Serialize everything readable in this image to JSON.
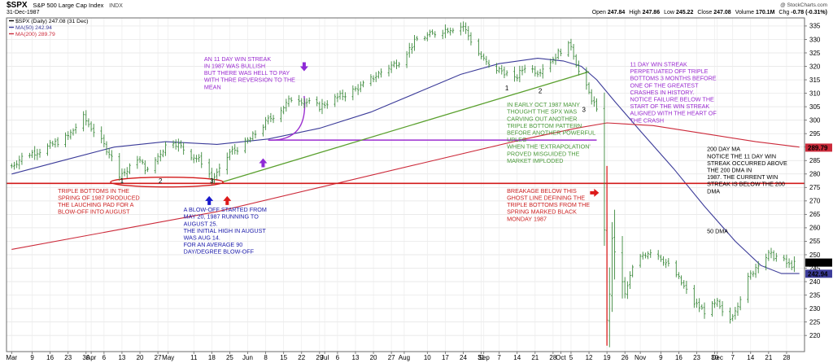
{
  "header": {
    "symbol": "$SPX",
    "title": "S&P 500 Large Cap Index",
    "exchange": "INDX",
    "date": "31-Dec-1987",
    "watermark": "@ StockCharts.com",
    "ohlc": [
      {
        "label": "Open",
        "value": "247.84"
      },
      {
        "label": "High",
        "value": "247.86"
      },
      {
        "label": "Low",
        "value": "245.22"
      },
      {
        "label": "Close",
        "value": "247.08"
      },
      {
        "label": "Volume",
        "value": "170.1M"
      },
      {
        "label": "Chg",
        "value": "-0.78 (-0.31%)"
      }
    ]
  },
  "legend": [
    {
      "text": "$SPX (Daily) 247.08 (31 Dec)",
      "color": "#000000"
    },
    {
      "text": "MA(50) 242.94",
      "color": "#3b3b99"
    },
    {
      "text": "MA(200) 289.79",
      "color": "#cc2a3a"
    }
  ],
  "chart_data": {
    "type": "bar",
    "title": "$SPX S&P 500 Large Cap Index",
    "ylim": [
      214,
      338
    ],
    "y_ticks": [
      220,
      225,
      230,
      235,
      240,
      245,
      250,
      255,
      260,
      265,
      270,
      275,
      280,
      285,
      290,
      295,
      300,
      305,
      310,
      315,
      320,
      325,
      330,
      335
    ],
    "x_ticks": [
      {
        "label": "Mar",
        "day": 0
      },
      {
        "label": "9",
        "day": 8
      },
      {
        "label": "16",
        "day": 15
      },
      {
        "label": "23",
        "day": 22
      },
      {
        "label": "30",
        "day": 29
      },
      {
        "label": "Apr",
        "day": 31
      },
      {
        "label": "6",
        "day": 36
      },
      {
        "label": "13",
        "day": 43
      },
      {
        "label": "20",
        "day": 50
      },
      {
        "label": "27",
        "day": 57
      },
      {
        "label": "May",
        "day": 61
      },
      {
        "label": "11",
        "day": 71
      },
      {
        "label": "18",
        "day": 78
      },
      {
        "label": "25",
        "day": 85
      },
      {
        "label": "Jun",
        "day": 92
      },
      {
        "label": "8",
        "day": 99
      },
      {
        "label": "15",
        "day": 106
      },
      {
        "label": "22",
        "day": 113
      },
      {
        "label": "29",
        "day": 120
      },
      {
        "label": "Jul",
        "day": 122
      },
      {
        "label": "6",
        "day": 127
      },
      {
        "label": "13",
        "day": 134
      },
      {
        "label": "20",
        "day": 141
      },
      {
        "label": "27",
        "day": 148
      },
      {
        "label": "Aug",
        "day": 153
      },
      {
        "label": "10",
        "day": 162
      },
      {
        "label": "17",
        "day": 169
      },
      {
        "label": "24",
        "day": 176
      },
      {
        "label": "31",
        "day": 183
      },
      {
        "label": "Sep",
        "day": 184
      },
      {
        "label": "7",
        "day": 190
      },
      {
        "label": "14",
        "day": 197
      },
      {
        "label": "21",
        "day": 204
      },
      {
        "label": "28",
        "day": 211
      },
      {
        "label": "Oct",
        "day": 214
      },
      {
        "label": "5",
        "day": 218
      },
      {
        "label": "12",
        "day": 225
      },
      {
        "label": "19",
        "day": 232
      },
      {
        "label": "26",
        "day": 239
      },
      {
        "label": "Nov",
        "day": 245
      },
      {
        "label": "9",
        "day": 253
      },
      {
        "label": "16",
        "day": 260
      },
      {
        "label": "23",
        "day": 267
      },
      {
        "label": "30",
        "day": 274
      },
      {
        "label": "Dec",
        "day": 275
      },
      {
        "label": "7",
        "day": 281
      },
      {
        "label": "14",
        "day": 288
      },
      {
        "label": "21",
        "day": 295
      },
      {
        "label": "28",
        "day": 302
      }
    ],
    "x_range_days": [
      -2,
      309
    ],
    "price_anchors": [
      [
        0,
        283
      ],
      [
        5,
        287
      ],
      [
        12,
        289
      ],
      [
        22,
        294
      ],
      [
        28,
        301
      ],
      [
        32,
        296
      ],
      [
        38,
        288
      ],
      [
        42,
        280
      ],
      [
        45,
        281
      ],
      [
        49,
        286
      ],
      [
        53,
        281
      ],
      [
        58,
        288
      ],
      [
        62,
        293
      ],
      [
        66,
        290
      ],
      [
        70,
        287
      ],
      [
        75,
        284
      ],
      [
        78,
        278
      ],
      [
        81,
        281
      ],
      [
        85,
        288
      ],
      [
        89,
        290
      ],
      [
        93,
        293
      ],
      [
        100,
        300
      ],
      [
        106,
        305
      ],
      [
        110,
        309
      ],
      [
        114,
        307
      ],
      [
        120,
        305
      ],
      [
        126,
        308
      ],
      [
        131,
        310
      ],
      [
        137,
        313
      ],
      [
        144,
        318
      ],
      [
        151,
        322
      ],
      [
        158,
        330
      ],
      [
        164,
        332
      ],
      [
        170,
        334
      ],
      [
        176,
        335
      ],
      [
        181,
        326
      ],
      [
        186,
        320
      ],
      [
        192,
        318
      ],
      [
        196,
        315
      ],
      [
        200,
        320
      ],
      [
        205,
        318
      ],
      [
        210,
        322
      ],
      [
        214,
        326
      ],
      [
        218,
        328
      ],
      [
        221,
        318
      ],
      [
        224,
        312
      ],
      [
        227,
        306
      ],
      [
        229,
        300
      ],
      [
        230,
        282
      ],
      [
        231,
        260
      ],
      [
        232,
        225
      ],
      [
        233,
        236
      ],
      [
        234,
        255
      ],
      [
        236,
        248
      ],
      [
        239,
        235
      ],
      [
        242,
        245
      ],
      [
        246,
        250
      ],
      [
        250,
        252
      ],
      [
        254,
        248
      ],
      [
        258,
        244
      ],
      [
        262,
        238
      ],
      [
        266,
        232
      ],
      [
        270,
        229
      ],
      [
        275,
        232
      ],
      [
        279,
        224
      ],
      [
        283,
        232
      ],
      [
        287,
        241
      ],
      [
        291,
        247
      ],
      [
        295,
        250
      ],
      [
        299,
        249
      ],
      [
        303,
        246
      ],
      [
        307,
        247
      ]
    ],
    "series": [
      {
        "name": "$SPX (Daily)",
        "color": "#3d8a3d",
        "last": 247.08
      },
      {
        "name": "MA(50)",
        "color": "#3b3b99",
        "last": 242.94,
        "points": [
          [
            0,
            280
          ],
          [
            20,
            285
          ],
          [
            40,
            290
          ],
          [
            60,
            292
          ],
          [
            80,
            291
          ],
          [
            100,
            293
          ],
          [
            120,
            297
          ],
          [
            140,
            303
          ],
          [
            160,
            311
          ],
          [
            175,
            317
          ],
          [
            190,
            321
          ],
          [
            205,
            323
          ],
          [
            215,
            322
          ],
          [
            222,
            320
          ],
          [
            228,
            315
          ],
          [
            235,
            307
          ],
          [
            245,
            296
          ],
          [
            258,
            282
          ],
          [
            270,
            268
          ],
          [
            282,
            255
          ],
          [
            292,
            246
          ],
          [
            300,
            243
          ],
          [
            307,
            243
          ]
        ]
      },
      {
        "name": "MA(200)",
        "color": "#cc2a3a",
        "last": 289.79,
        "points": [
          [
            0,
            252
          ],
          [
            40,
            259
          ],
          [
            80,
            266
          ],
          [
            120,
            275
          ],
          [
            160,
            284
          ],
          [
            200,
            293
          ],
          [
            220,
            297
          ],
          [
            232,
            299
          ],
          [
            250,
            298
          ],
          [
            270,
            295
          ],
          [
            290,
            292
          ],
          [
            307,
            290
          ]
        ]
      }
    ],
    "value_labels": [
      {
        "value": 289.79,
        "text": "289.79",
        "color": "#cc2a3a"
      },
      {
        "value": 247.08,
        "text": "247.08",
        "color": "#000000"
      },
      {
        "value": 242.94,
        "text": "242.94",
        "color": "#3b3b99"
      }
    ],
    "lines": [
      {
        "type": "horizontal",
        "color": "#d21a1a",
        "value": 276.5,
        "from": -2,
        "to": 309,
        "width": 1.6
      },
      {
        "type": "horizontal",
        "color": "#9b2fd0",
        "value": 292.6,
        "from": 100,
        "to": 228,
        "width": 1.4
      },
      {
        "type": "trend",
        "color": "#5aa02e",
        "points": [
          [
            82,
            277
          ],
          [
            225,
            318
          ]
        ],
        "width": 1.3
      }
    ],
    "markers": [
      {
        "label": "1",
        "day": 43,
        "value": 277.5
      },
      {
        "label": "2",
        "day": 58,
        "value": 277.5
      },
      {
        "label": "3",
        "day": 78,
        "value": 277.5
      },
      {
        "label": "1",
        "day": 193,
        "value": 312
      },
      {
        "label": "2",
        "day": 206,
        "value": 311
      },
      {
        "label": "3",
        "day": 223,
        "value": 304
      }
    ],
    "arrows": [
      {
        "dir": "up",
        "color": "#1a1acc",
        "day": 77,
        "value": 270
      },
      {
        "dir": "up",
        "color": "#dd1a1a",
        "day": 84,
        "value": 270
      },
      {
        "dir": "up",
        "color": "#8e2ad6",
        "day": 98,
        "value": 284
      },
      {
        "dir": "down",
        "color": "#8e2ad6",
        "day": 114,
        "value": 320
      },
      {
        "dir": "right",
        "color": "#dd1a1a",
        "day": 227,
        "value": 273
      }
    ],
    "annotations": [
      {
        "id": "triple-bottoms",
        "color": "#cc2222",
        "day": 18,
        "value": 273,
        "lines": [
          "TRIPLE BOTTOMS IN THE",
          "SPRING OF 1987  PRODUCED",
          "THE LAUCHING PAD FOR A",
          "BLOW-OFF INTO AUGUST"
        ]
      },
      {
        "id": "blow-off",
        "color": "#1a1aaa",
        "day": 67,
        "value": 266,
        "lines": [
          "A BLOW-OFF STARTED FROM",
          "MAY 20, 1987 RUNNING TO",
          "AUGUST 25.",
          "THE INITIAL HIGH IN AUGUST",
          "WAS AUG 14.",
          "FOR AN AVERAGE 90",
          "DAY/DEGREE BLOW-OFF"
        ]
      },
      {
        "id": "win-streak-1987",
        "color": "#9a2ad0",
        "day": 75,
        "value": 322,
        "lines": [
          "AN 11 DAY WIN STREAK",
          "IN 1987 WAS BULLISH",
          "BUT THERE WAS HELL TO PAY",
          "WITH THRE REVERSION TO THE",
          "MEAN"
        ]
      },
      {
        "id": "extrapolation",
        "color": "#4a9a3a",
        "day": 193,
        "value": 305,
        "lines": [
          "IN EARLY OCT 1987 MANY",
          "THOUGHT THE SPX WAS",
          "CARVING OUT ANOTHER",
          "TRIPLE BOTTOM PATTERN",
          "BEFORE ANOTHER POWERFUL",
          "UPLEG",
          "WHEN THE 'EXTRAPOLATION'",
          "PROVED MISGUIDED THE",
          "MARKET IMPLODED"
        ]
      },
      {
        "id": "breakage",
        "color": "#cc2222",
        "day": 193,
        "value": 273,
        "lines": [
          "BREAKAGE BELOW THIS",
          "GHOST LINE DEFINING THE",
          "TRIPLE BOTTOMS FROM THE",
          "SPRING MARKED BLACK",
          "MONDAY 1987"
        ]
      },
      {
        "id": "crash-streak",
        "color": "#9a2ad0",
        "day": 241,
        "value": 320,
        "lines": [
          "11 DAY WIN STREAK",
          "PERPETUATED OFF TRIPLE",
          "BOTTOMS 3 MONTHS BEFORE",
          "ONE OF THE GREATEST",
          "CRASHES IN HISTORY.",
          "NOTICE FAILURE BELOW THE",
          "START OF THE WIN STREAK",
          "ALIGNED WITH THE HEART OF",
          "THE CRASH"
        ]
      },
      {
        "id": "ma200-note",
        "color": "#000000",
        "day": 271,
        "value": 288.5,
        "lines": [
          "200 DAY MA",
          "NOTICE THE 11 DAY WIN",
          "STREAK OCCURRED ABOVE",
          "THE 200 DMA IN",
          "1987. THE CURRENT WIN",
          "STREAK IS BELOW THE 200",
          "DMA"
        ]
      },
      {
        "id": "ma50-note",
        "color": "#000000",
        "day": 271,
        "value": 258,
        "lines": [
          "50 DMA"
        ]
      }
    ]
  }
}
